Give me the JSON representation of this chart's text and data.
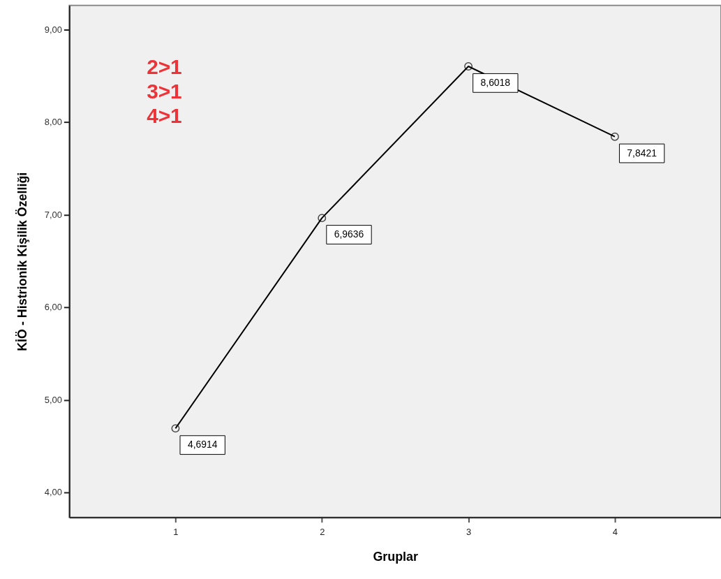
{
  "chart_data": {
    "type": "line",
    "xlabel": "Gruplar",
    "ylabel": "KİÖ - Histrionik Kişilik Özelliği",
    "categories": [
      "1",
      "2",
      "3",
      "4"
    ],
    "values": [
      4.6914,
      6.9636,
      8.6018,
      7.8421
    ],
    "value_labels": [
      "4,6914",
      "6,9636",
      "8,6018",
      "7,8421"
    ],
    "color": "#000000",
    "marker": "circle",
    "ylim": [
      3.73,
      9.26
    ],
    "yticks": [
      {
        "value": 4,
        "label": "4,00"
      },
      {
        "value": 5,
        "label": "5,00"
      },
      {
        "value": 6,
        "label": "6,00"
      },
      {
        "value": 7,
        "label": "7,00"
      },
      {
        "value": 8,
        "label": "8,00"
      },
      {
        "value": 9,
        "label": "9,00"
      }
    ],
    "grid": false,
    "annotations": [
      "2>1",
      "3>1",
      "4>1"
    ]
  }
}
